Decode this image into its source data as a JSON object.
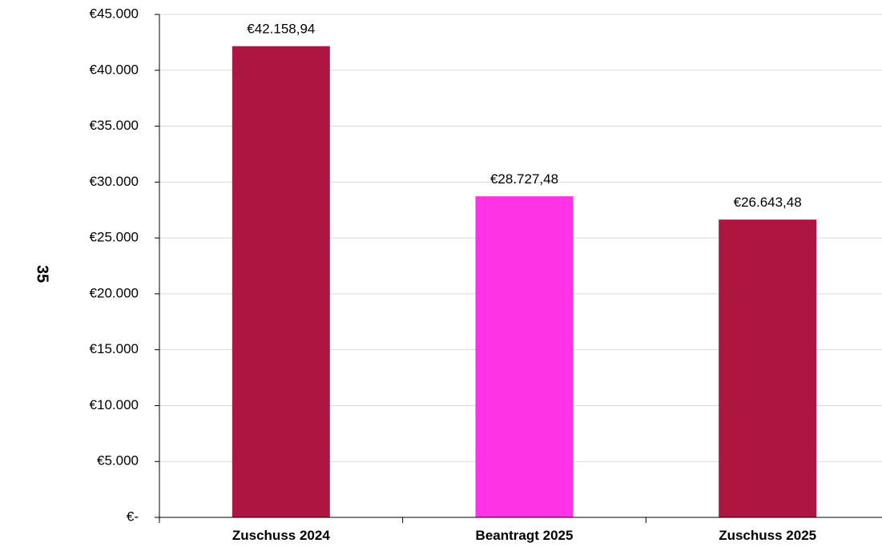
{
  "chart_data": {
    "type": "bar",
    "title": "",
    "xlabel": "",
    "ylabel": "35",
    "categories": [
      "Zuschuss 2024",
      "Beantragt 2025",
      "Zuschuss 2025"
    ],
    "values": [
      42158.94,
      28727.48,
      26643.48
    ],
    "value_labels": [
      "€42.158,94",
      "€28.727,48",
      "€26.643,48"
    ],
    "bar_colors": [
      "#ad1640",
      "#ff33e6",
      "#ad1640"
    ],
    "ylim": [
      0,
      45000
    ],
    "y_ticks": [
      0,
      5000,
      10000,
      15000,
      20000,
      25000,
      30000,
      35000,
      40000,
      45000
    ],
    "y_tick_labels": [
      "€-",
      "€5.000",
      "€10.000",
      "€15.000",
      "€20.000",
      "€25.000",
      "€30.000",
      "€35.000",
      "€40.000",
      "€45.000"
    ],
    "grid": true,
    "legend": "none"
  }
}
